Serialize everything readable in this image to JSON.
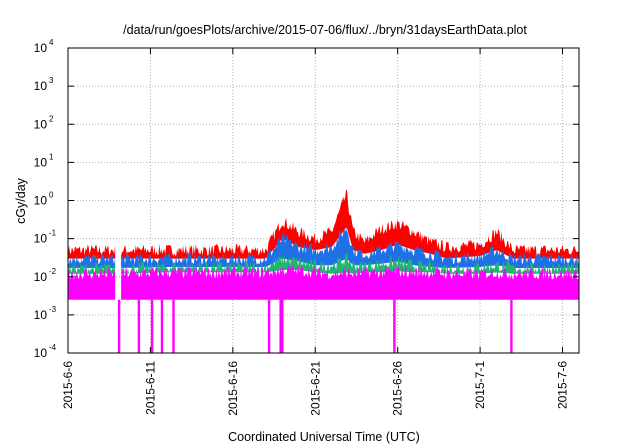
{
  "chart_data": {
    "type": "area",
    "title": "/data/run/goesPlots/archive/2015-07-06/flux/../bryn/31daysEarthData.plot",
    "xlabel": "Coordinated Universal Time (UTC)",
    "ylabel": "cGy/day",
    "yscale": "log",
    "ylim": [
      0.0001,
      10000
    ],
    "xlim": [
      "2015-06-06",
      "2015-07-07"
    ],
    "grid": true,
    "legend": "none",
    "x_ticks": [
      "2015-6-6",
      "2015-6-11",
      "2015-6-16",
      "2015-6-21",
      "2015-6-26",
      "2015-7-1",
      "2015-7-6"
    ],
    "y_ticks": [
      {
        "base": "10",
        "exp": "-4"
      },
      {
        "base": "10",
        "exp": "-3"
      },
      {
        "base": "10",
        "exp": "-2"
      },
      {
        "base": "10",
        "exp": "-1"
      },
      {
        "base": "10",
        "exp": "0"
      },
      {
        "base": "10",
        "exp": "1"
      },
      {
        "base": "10",
        "exp": "2"
      },
      {
        "base": "10",
        "exp": "3"
      },
      {
        "base": "10",
        "exp": "4"
      }
    ],
    "data_gaps": [
      [
        "2015-06-08.92",
        "2015-06-09.17"
      ]
    ],
    "x": [
      "2015-06-06",
      "2015-06-08.9",
      "2015-06-09.2",
      "2015-06-12",
      "2015-06-15",
      "2015-06-18",
      "2015-06-19",
      "2015-06-20",
      "2015-06-21",
      "2015-06-22",
      "2015-06-22.9",
      "2015-06-23.3",
      "2015-06-24",
      "2015-06-25",
      "2015-06-26",
      "2015-06-27",
      "2015-06-28",
      "2015-06-29",
      "2015-07-01",
      "2015-07-02",
      "2015-07-03",
      "2015-07-05",
      "2015-07-07"
    ],
    "series": [
      {
        "color": "#ff0000",
        "values": [
          0.05,
          0.05,
          0.05,
          0.05,
          0.05,
          0.05,
          0.3,
          0.15,
          0.1,
          0.15,
          1.5,
          0.15,
          0.08,
          0.18,
          0.25,
          0.15,
          0.08,
          0.06,
          0.07,
          0.15,
          0.05,
          0.05,
          0.05
        ]
      },
      {
        "color": "#1f6fe5",
        "values": [
          0.03,
          0.03,
          0.03,
          0.03,
          0.03,
          0.03,
          0.1,
          0.06,
          0.05,
          0.06,
          0.2,
          0.05,
          0.04,
          0.05,
          0.07,
          0.05,
          0.04,
          0.03,
          0.035,
          0.05,
          0.03,
          0.03,
          0.03
        ]
      },
      {
        "color": "#22b573",
        "values": [
          0.017,
          0.017,
          0.017,
          0.018,
          0.018,
          0.018,
          0.03,
          0.025,
          0.02,
          0.02,
          0.03,
          0.02,
          0.02,
          0.022,
          0.025,
          0.02,
          0.018,
          0.017,
          0.018,
          0.02,
          0.017,
          0.017,
          0.017
        ]
      },
      {
        "color": "#ff00ff",
        "values": [
          0.012,
          0.012,
          0.012,
          0.013,
          0.013,
          0.013,
          0.015,
          0.015,
          0.013,
          0.012,
          0.013,
          0.012,
          0.013,
          0.013,
          0.014,
          0.013,
          0.013,
          0.012,
          0.012,
          0.013,
          0.012,
          0.012,
          0.012
        ]
      }
    ],
    "base_values": [
      0.0025,
      0.0025,
      0.0025,
      0.0025,
      0.0025,
      0.0025,
      0.0025,
      0.0025,
      0.0025,
      0.0025,
      0.0025,
      0.0025,
      0.0025,
      0.0025,
      0.0025,
      0.0025,
      0.0025,
      0.0025,
      0.0025,
      0.0025,
      0.0025,
      0.0025,
      0.0025
    ],
    "drop_dates": [
      "2015-06-09.1",
      "2015-06-10.3",
      "2015-06-11.1",
      "2015-06-11.7",
      "2015-06-12.4",
      "2015-06-18.2",
      "2015-06-18.9",
      "2015-06-19.0",
      "2015-06-25.8",
      "2015-07-02.9"
    ],
    "colors": {
      "red": "#ff0000",
      "blue": "#1f6fe5",
      "green": "#22b573",
      "magenta": "#ff00ff",
      "grid": "#b0b0b0"
    }
  }
}
